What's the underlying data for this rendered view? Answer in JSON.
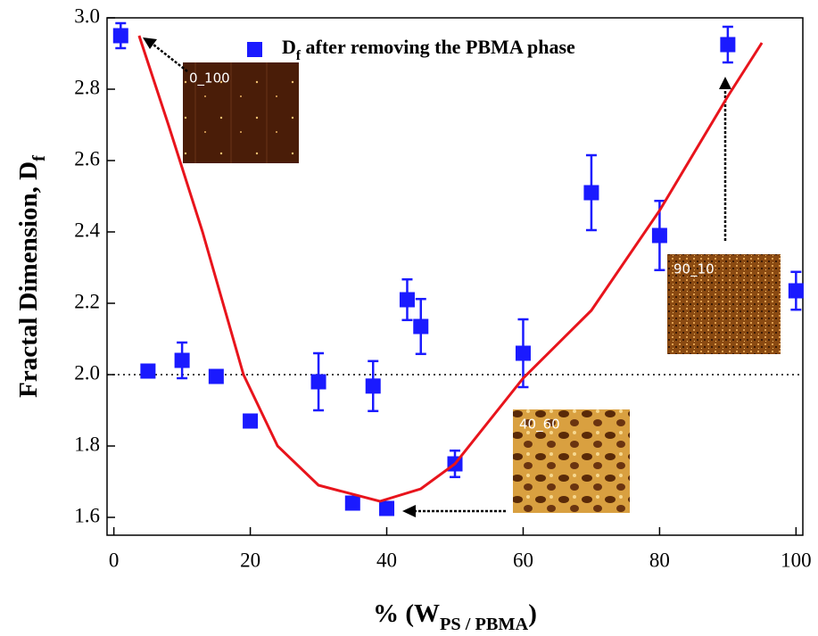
{
  "chart_data": {
    "type": "scatter",
    "xlabel": [
      {
        "text": "% (W"
      },
      {
        "text": "PS / PBMA",
        "sub": true
      },
      {
        "text": ")"
      }
    ],
    "ylabel": [
      {
        "text": "Fractal Dimension, D"
      },
      {
        "text": "f",
        "sub": true
      }
    ],
    "xlim": [
      -1,
      101
    ],
    "ylim": [
      1.55,
      3.0
    ],
    "xticks": [
      0,
      20,
      40,
      60,
      80,
      100
    ],
    "yticks": [
      1.6,
      1.8,
      {
        "value": 2,
        "label": "2.0"
      },
      2.2,
      2.4,
      2.6,
      2.8,
      {
        "value": 3,
        "label": "3.0"
      }
    ],
    "reference_line": 2,
    "legend": "top-center",
    "series": [
      {
        "name": [
          {
            "text": "D"
          },
          {
            "text": "f",
            "sub": true
          },
          {
            "text": " after removing the PBMA phase"
          }
        ],
        "color": "#1a1aff",
        "x": [
          1,
          5,
          10,
          15,
          20,
          30,
          35,
          38,
          40,
          43,
          45,
          50,
          60,
          70,
          80,
          90,
          100
        ],
        "values": [
          2.95,
          2.01,
          2.04,
          1.995,
          1.87,
          1.98,
          1.64,
          1.968,
          1.625,
          2.21,
          2.135,
          1.75,
          2.06,
          2.51,
          2.39,
          2.925,
          2.235
        ],
        "errors": [
          0.035,
          0,
          0.05,
          0,
          0,
          0.08,
          0,
          0.07,
          0,
          0.057,
          0.077,
          0.037,
          0.095,
          0.105,
          0.097,
          0.05,
          0.053
        ]
      },
      {
        "type": "line",
        "color": "#e8141c",
        "x": [
          3.7,
          8,
          13,
          19,
          24,
          30,
          39,
          45,
          50,
          60,
          70,
          80,
          90,
          95
        ],
        "values": [
          2.95,
          2.7,
          2.4,
          2.0,
          1.8,
          1.69,
          1.645,
          1.68,
          1.75,
          1.99,
          2.18,
          2.46,
          2.78,
          2.93
        ]
      }
    ],
    "annotations": [
      "0_100",
      "40_60",
      "90_10"
    ]
  }
}
